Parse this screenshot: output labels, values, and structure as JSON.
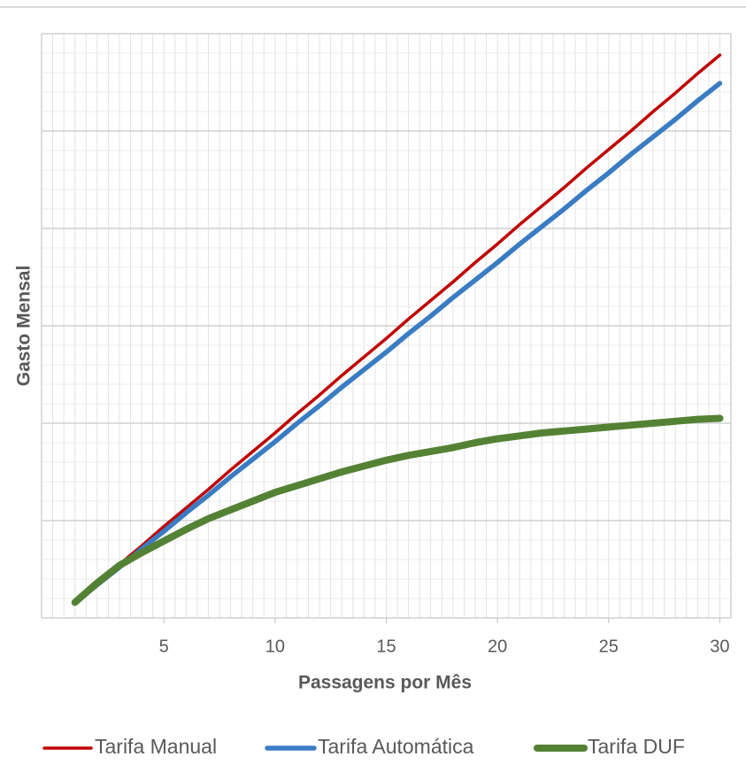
{
  "chart_data": {
    "type": "line",
    "x_label": "Passagens por Mês",
    "y_label": "Gasto Mensal",
    "x": [
      1,
      2,
      3,
      4,
      5,
      6,
      7,
      8,
      9,
      10,
      11,
      12,
      13,
      14,
      15,
      16,
      17,
      18,
      19,
      20,
      21,
      22,
      23,
      24,
      25,
      26,
      27,
      28,
      29,
      30
    ],
    "series": [
      {
        "name": "Tarifa Manual",
        "color": "#c00000",
        "values": [
          0.16,
          0.35,
          0.55,
          0.74,
          0.94,
          1.13,
          1.32,
          1.52,
          1.71,
          1.9,
          2.1,
          2.29,
          2.49,
          2.68,
          2.87,
          3.07,
          3.26,
          3.45,
          3.65,
          3.84,
          4.04,
          4.23,
          4.42,
          4.62,
          4.81,
          5.0,
          5.2,
          5.39,
          5.59,
          5.78
        ]
      },
      {
        "name": "Tarifa Automática",
        "color": "#3a7cc3",
        "values": [
          0.16,
          0.34,
          0.52,
          0.71,
          0.89,
          1.08,
          1.26,
          1.45,
          1.63,
          1.81,
          2.0,
          2.18,
          2.37,
          2.55,
          2.73,
          2.92,
          3.1,
          3.29,
          3.47,
          3.65,
          3.84,
          4.02,
          4.2,
          4.39,
          4.57,
          4.76,
          4.94,
          5.12,
          5.31,
          5.49
        ]
      },
      {
        "name": "Tarifa DUF",
        "color": "#548235",
        "values": [
          0.16,
          0.36,
          0.54,
          0.67,
          0.79,
          0.91,
          1.02,
          1.11,
          1.2,
          1.29,
          1.36,
          1.43,
          1.5,
          1.56,
          1.62,
          1.67,
          1.71,
          1.75,
          1.8,
          1.84,
          1.87,
          1.9,
          1.92,
          1.94,
          1.96,
          1.98,
          2.0,
          2.02,
          2.04,
          2.05
        ]
      }
    ],
    "xlim": [
      -0.5,
      30.5
    ],
    "xticks": [
      5,
      10,
      15,
      20,
      25,
      30
    ],
    "ylim": [
      0,
      6
    ],
    "yticks": [
      0,
      1,
      2,
      3,
      4,
      5,
      6
    ],
    "grid": true,
    "legend": "bottom"
  }
}
